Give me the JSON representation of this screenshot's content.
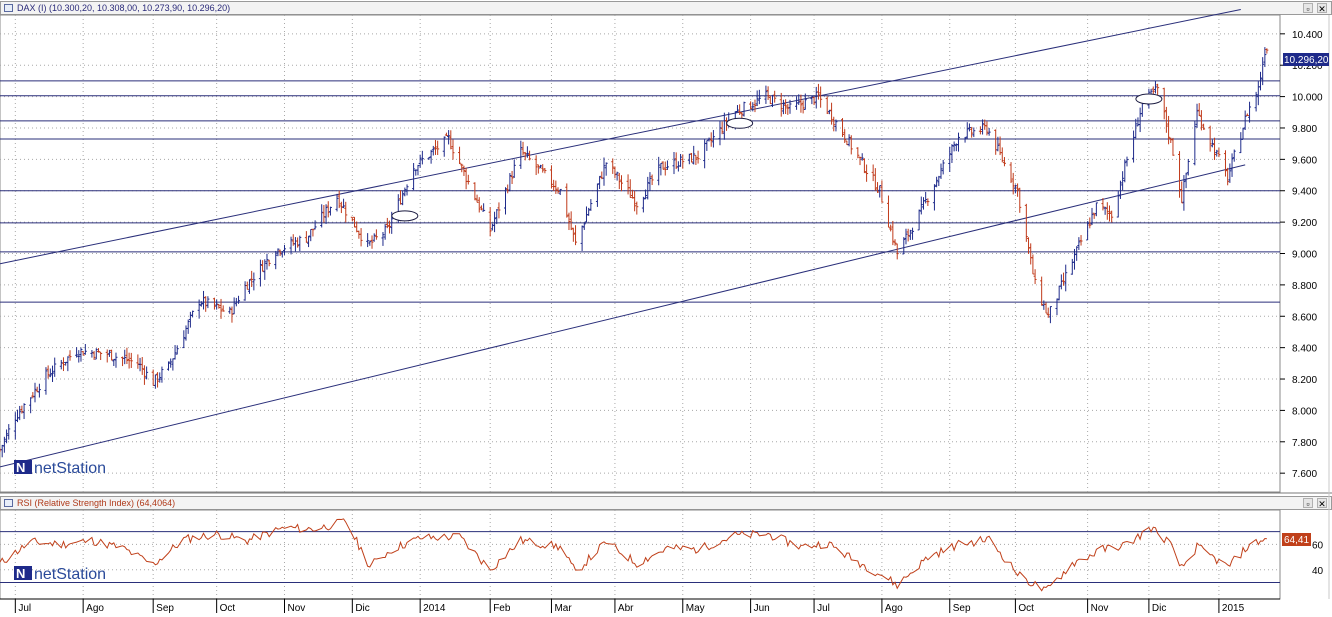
{
  "main_panel": {
    "title": "DAX (I) (10.300,20, 10.308,00, 10.273,90, 10.296,20)",
    "last_price_label": "10.296,20",
    "watermark": "netStation"
  },
  "rsi_panel": {
    "title": "RSI (Relative Strength Index) (64,4064)",
    "last_value_label": "64,41",
    "watermark": "netStation"
  },
  "window_controls": {
    "restore": "▫",
    "close": "✕"
  },
  "colors": {
    "up": "#1e2a8a",
    "down": "#c03a1a",
    "lines": "#2a2f7a",
    "rsi": "#c0401a",
    "grid": "#a8a8a8"
  },
  "chart_data": [
    {
      "type": "ohlc",
      "title": "DAX (I) (10.300,20, 10.308,00, 10.273,90, 10.296,20)",
      "last": {
        "open": 10300.2,
        "high": 10308.0,
        "low": 10273.9,
        "close": 10296.2
      },
      "y_ticks": [
        "7.600",
        "7.800",
        "8.000",
        "8.200",
        "8.400",
        "8.600",
        "8.800",
        "9.000",
        "9.200",
        "9.400",
        "9.600",
        "9.800",
        "10.000",
        "10.200",
        "10.400"
      ],
      "ylim": [
        7480,
        10520
      ],
      "x_labels": [
        "Jul",
        "Ago",
        "Sep",
        "Oct",
        "Nov",
        "Dic",
        "2014",
        "Feb",
        "Mar",
        "Abr",
        "May",
        "Jun",
        "Jul",
        "Ago",
        "Sep",
        "Oct",
        "Nov",
        "Dic",
        "2015"
      ],
      "grid": true,
      "horizontal_levels": [
        8690,
        9010,
        9195,
        9400,
        9730,
        9845,
        10005,
        10100
      ],
      "trend_channel": {
        "upper": [
          {
            "date": "2013-06-24",
            "value": 8935
          },
          {
            "date": "2015-01-12",
            "value": 10555
          }
        ],
        "lower": [
          {
            "date": "2013-06-24",
            "value": 7640
          },
          {
            "date": "2015-01-14",
            "value": 9565
          }
        ]
      },
      "markers": [
        {
          "date": "2013-12-26",
          "value": 9240
        },
        {
          "date": "2014-05-28",
          "value": 9830
        },
        {
          "date": "2014-12-01",
          "value": 9985
        }
      ],
      "close_path": [
        {
          "date": "2013-06-24",
          "value": 7750
        },
        {
          "date": "2013-07-01",
          "value": 7960
        },
        {
          "date": "2013-07-15",
          "value": 8220
        },
        {
          "date": "2013-07-29",
          "value": 8380
        },
        {
          "date": "2013-08-12",
          "value": 8360
        },
        {
          "date": "2013-08-26",
          "value": 8300
        },
        {
          "date": "2013-09-02",
          "value": 8180
        },
        {
          "date": "2013-09-09",
          "value": 8280
        },
        {
          "date": "2013-09-23",
          "value": 8700
        },
        {
          "date": "2013-10-07",
          "value": 8620
        },
        {
          "date": "2013-10-14",
          "value": 8790
        },
        {
          "date": "2013-10-28",
          "value": 9020
        },
        {
          "date": "2013-11-11",
          "value": 9100
        },
        {
          "date": "2013-11-25",
          "value": 9360
        },
        {
          "date": "2013-12-09",
          "value": 9050
        },
        {
          "date": "2013-12-18",
          "value": 9150
        },
        {
          "date": "2013-12-30",
          "value": 9550
        },
        {
          "date": "2014-01-15",
          "value": 9730
        },
        {
          "date": "2014-02-03",
          "value": 9150
        },
        {
          "date": "2014-02-17",
          "value": 9650
        },
        {
          "date": "2014-03-07",
          "value": 9400
        },
        {
          "date": "2014-03-14",
          "value": 9060
        },
        {
          "date": "2014-03-28",
          "value": 9580
        },
        {
          "date": "2014-04-11",
          "value": 9320
        },
        {
          "date": "2014-04-22",
          "value": 9550
        },
        {
          "date": "2014-05-09",
          "value": 9620
        },
        {
          "date": "2014-05-26",
          "value": 9900
        },
        {
          "date": "2014-06-09",
          "value": 10000
        },
        {
          "date": "2014-06-20",
          "value": 9920
        },
        {
          "date": "2014-07-03",
          "value": 10000
        },
        {
          "date": "2014-07-15",
          "value": 9750
        },
        {
          "date": "2014-07-31",
          "value": 9400
        },
        {
          "date": "2014-08-08",
          "value": 9000
        },
        {
          "date": "2014-08-18",
          "value": 9250
        },
        {
          "date": "2014-09-05",
          "value": 9750
        },
        {
          "date": "2014-09-18",
          "value": 9800
        },
        {
          "date": "2014-10-02",
          "value": 9400
        },
        {
          "date": "2014-10-10",
          "value": 8800
        },
        {
          "date": "2014-10-16",
          "value": 8600
        },
        {
          "date": "2014-10-27",
          "value": 8950
        },
        {
          "date": "2014-11-07",
          "value": 9300
        },
        {
          "date": "2014-11-14",
          "value": 9250
        },
        {
          "date": "2014-11-28",
          "value": 9950
        },
        {
          "date": "2014-12-05",
          "value": 10050
        },
        {
          "date": "2014-12-12",
          "value": 9650
        },
        {
          "date": "2014-12-16",
          "value": 9350
        },
        {
          "date": "2014-12-23",
          "value": 9900
        },
        {
          "date": "2015-01-06",
          "value": 9480
        },
        {
          "date": "2015-01-15",
          "value": 9900
        },
        {
          "date": "2015-01-20",
          "value": 10050
        },
        {
          "date": "2015-01-23",
          "value": 10296
        }
      ]
    },
    {
      "type": "line",
      "title": "RSI (Relative Strength Index) (64,4064)",
      "last_value": 64.41,
      "y_ticks": [
        "40",
        "60"
      ],
      "levels": [
        30,
        70
      ],
      "ylim": [
        17,
        87
      ],
      "x_labels": [
        "Jul",
        "Ago",
        "Sep",
        "Oct",
        "Nov",
        "Dic",
        "2014",
        "Feb",
        "Mar",
        "Abr",
        "May",
        "Jun",
        "Jul",
        "Ago",
        "Sep",
        "Oct",
        "Nov",
        "Dic",
        "2015"
      ],
      "series": [
        {
          "points": [
            {
              "date": "2013-06-24",
              "value": 45
            },
            {
              "date": "2013-07-08",
              "value": 62
            },
            {
              "date": "2013-07-22",
              "value": 60
            },
            {
              "date": "2013-08-05",
              "value": 63
            },
            {
              "date": "2013-08-19",
              "value": 57
            },
            {
              "date": "2013-09-02",
              "value": 44
            },
            {
              "date": "2013-09-16",
              "value": 64
            },
            {
              "date": "2013-10-01",
              "value": 68
            },
            {
              "date": "2013-10-15",
              "value": 63
            },
            {
              "date": "2013-11-01",
              "value": 73
            },
            {
              "date": "2013-11-15",
              "value": 72
            },
            {
              "date": "2013-11-29",
              "value": 78
            },
            {
              "date": "2013-12-10",
              "value": 43
            },
            {
              "date": "2013-12-20",
              "value": 56
            },
            {
              "date": "2014-01-02",
              "value": 65
            },
            {
              "date": "2014-01-20",
              "value": 66
            },
            {
              "date": "2014-02-03",
              "value": 40
            },
            {
              "date": "2014-02-17",
              "value": 63
            },
            {
              "date": "2014-03-07",
              "value": 58
            },
            {
              "date": "2014-03-14",
              "value": 38
            },
            {
              "date": "2014-03-28",
              "value": 62
            },
            {
              "date": "2014-04-11",
              "value": 45
            },
            {
              "date": "2014-04-25",
              "value": 57
            },
            {
              "date": "2014-05-09",
              "value": 56
            },
            {
              "date": "2014-05-26",
              "value": 67
            },
            {
              "date": "2014-06-10",
              "value": 68
            },
            {
              "date": "2014-06-25",
              "value": 58
            },
            {
              "date": "2014-07-07",
              "value": 61
            },
            {
              "date": "2014-07-18",
              "value": 49
            },
            {
              "date": "2014-08-01",
              "value": 36
            },
            {
              "date": "2014-08-08",
              "value": 28
            },
            {
              "date": "2014-08-22",
              "value": 50
            },
            {
              "date": "2014-09-05",
              "value": 60
            },
            {
              "date": "2014-09-19",
              "value": 64
            },
            {
              "date": "2014-10-03",
              "value": 35
            },
            {
              "date": "2014-10-15",
              "value": 23
            },
            {
              "date": "2014-10-27",
              "value": 45
            },
            {
              "date": "2014-11-10",
              "value": 56
            },
            {
              "date": "2014-11-21",
              "value": 60
            },
            {
              "date": "2014-12-02",
              "value": 73
            },
            {
              "date": "2014-12-10",
              "value": 62
            },
            {
              "date": "2014-12-16",
              "value": 41
            },
            {
              "date": "2014-12-23",
              "value": 58
            },
            {
              "date": "2015-01-06",
              "value": 42
            },
            {
              "date": "2015-01-15",
              "value": 58
            },
            {
              "date": "2015-01-23",
              "value": 64.41
            }
          ]
        }
      ]
    }
  ]
}
